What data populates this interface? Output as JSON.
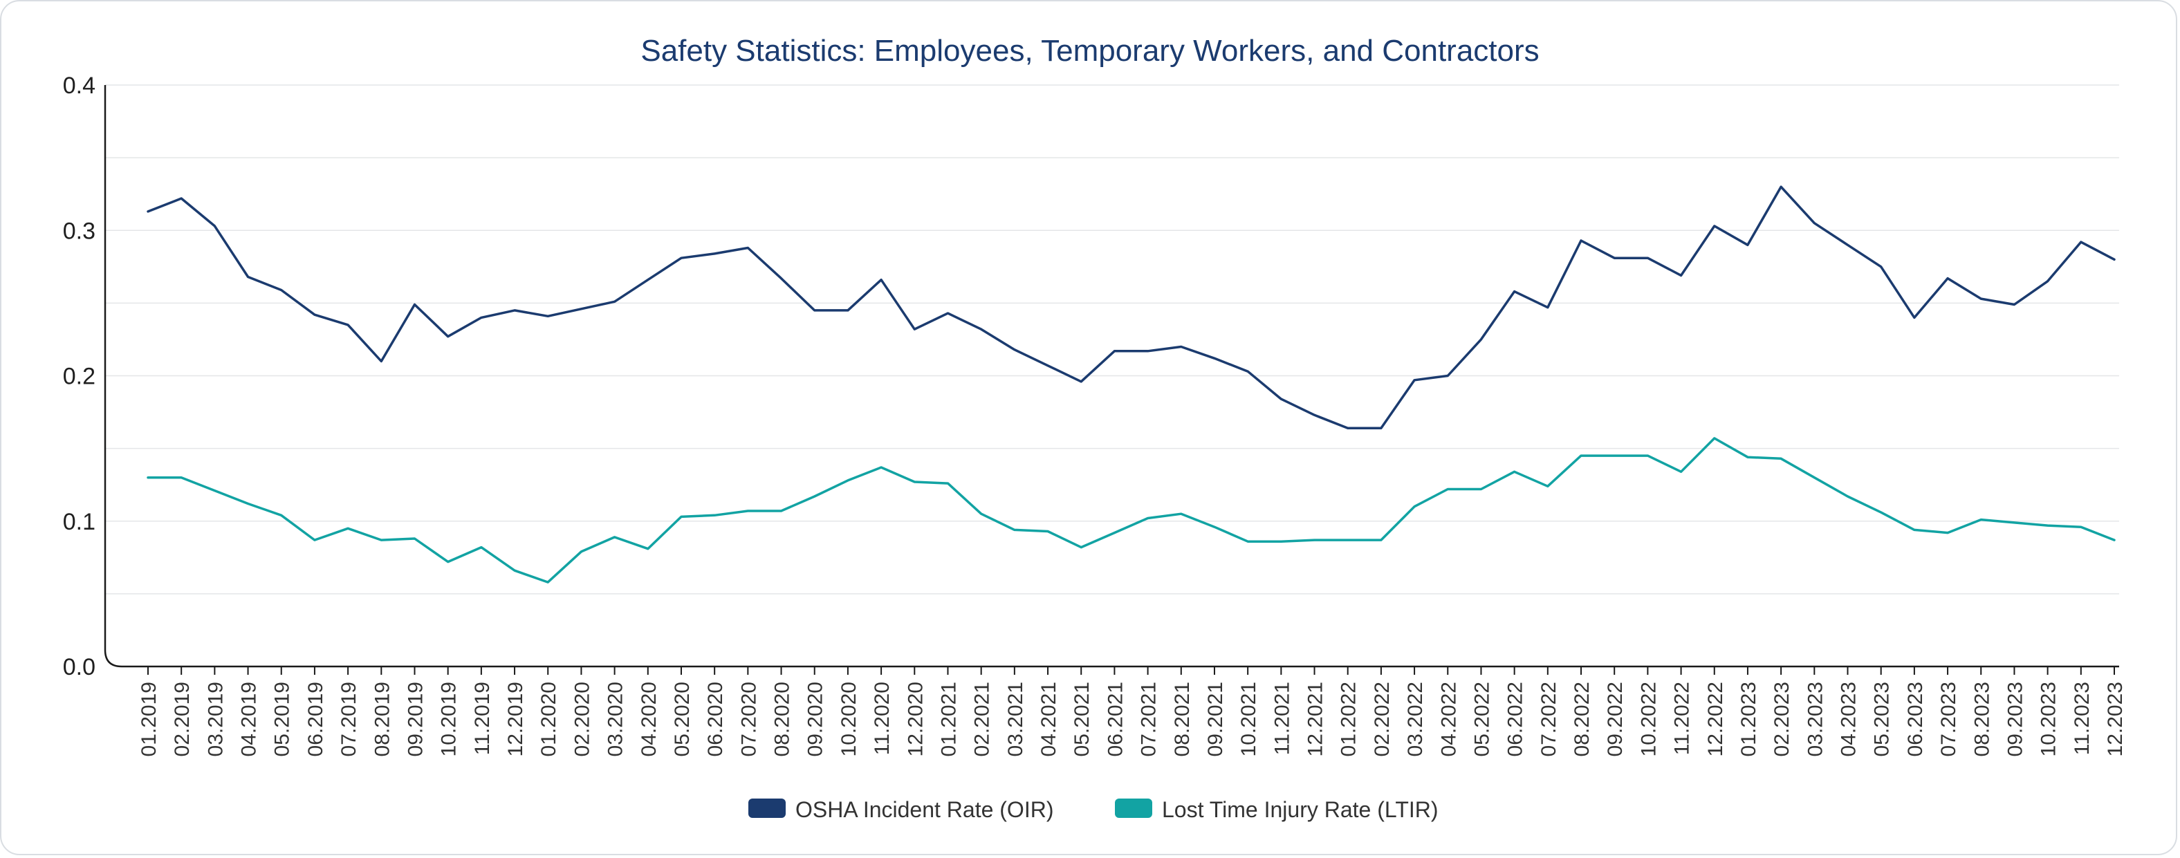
{
  "chart_data": {
    "type": "line",
    "title": "Safety Statistics: Employees, Temporary Workers, and Contractors",
    "xlabel": "",
    "ylabel": "",
    "ylim": [
      0,
      0.4
    ],
    "yticks": [
      "0.0",
      "0.1",
      "0.2",
      "0.3",
      "0.4"
    ],
    "ytick_values": [
      0,
      0.1,
      0.2,
      0.3,
      0.4
    ],
    "gridline_values": [
      0.05,
      0.1,
      0.15,
      0.2,
      0.25,
      0.3,
      0.35,
      0.4
    ],
    "grid": true,
    "legend_position": "bottom-center",
    "title_color": "#1b3b6f",
    "categories": [
      "01.2019",
      "02.2019",
      "03.2019",
      "04.2019",
      "05.2019",
      "06.2019",
      "07.2019",
      "08.2019",
      "09.2019",
      "10.2019",
      "11.2019",
      "12.2019",
      "01.2020",
      "02.2020",
      "03.2020",
      "04.2020",
      "05.2020",
      "06.2020",
      "07.2020",
      "08.2020",
      "09.2020",
      "10.2020",
      "11.2020",
      "12.2020",
      "01.2021",
      "02.2021",
      "03.2021",
      "04.2021",
      "05.2021",
      "06.2021",
      "07.2021",
      "08.2021",
      "09.2021",
      "10.2021",
      "11.2021",
      "12.2021",
      "01.2022",
      "02.2022",
      "03.2022",
      "04.2022",
      "05.2022",
      "06.2022",
      "07.2022",
      "08.2022",
      "09.2022",
      "10.2022",
      "11.2022",
      "12.2022",
      "01.2023",
      "02.2023",
      "03.2023",
      "04.2023",
      "05.2023",
      "06.2023",
      "07.2023",
      "08.2023",
      "09.2023",
      "10.2023",
      "11.2023",
      "12.2023"
    ],
    "series": [
      {
        "name": "OSHA Incident Rate (OIR)",
        "color": "#1b3b6f",
        "values": [
          0.313,
          0.322,
          0.303,
          0.268,
          0.259,
          0.242,
          0.235,
          0.21,
          0.249,
          0.227,
          0.24,
          0.245,
          0.241,
          0.246,
          0.251,
          0.266,
          0.281,
          0.284,
          0.288,
          0.267,
          0.245,
          0.245,
          0.266,
          0.232,
          0.243,
          0.232,
          0.218,
          0.207,
          0.196,
          0.217,
          0.217,
          0.22,
          0.212,
          0.203,
          0.184,
          0.173,
          0.164,
          0.164,
          0.197,
          0.2,
          0.225,
          0.258,
          0.247,
          0.293,
          0.281,
          0.281,
          0.269,
          0.303,
          0.29,
          0.33,
          0.305,
          0.29,
          0.275,
          0.24,
          0.267,
          0.253,
          0.249,
          0.265,
          0.292,
          0.28
        ]
      },
      {
        "name": "Lost Time Injury Rate (LTIR)",
        "color": "#12a3a3",
        "values": [
          0.13,
          0.13,
          0.121,
          0.112,
          0.104,
          0.087,
          0.095,
          0.087,
          0.088,
          0.072,
          0.082,
          0.066,
          0.058,
          0.079,
          0.089,
          0.081,
          0.103,
          0.104,
          0.107,
          0.107,
          0.117,
          0.128,
          0.137,
          0.127,
          0.126,
          0.105,
          0.094,
          0.093,
          0.082,
          0.092,
          0.102,
          0.105,
          0.096,
          0.086,
          0.086,
          0.087,
          0.087,
          0.087,
          0.11,
          0.122,
          0.122,
          0.134,
          0.124,
          0.145,
          0.145,
          0.145,
          0.134,
          0.157,
          0.144,
          0.143,
          0.13,
          0.117,
          0.106,
          0.094,
          0.092,
          0.101,
          0.099,
          0.097,
          0.096,
          0.087
        ]
      }
    ]
  }
}
